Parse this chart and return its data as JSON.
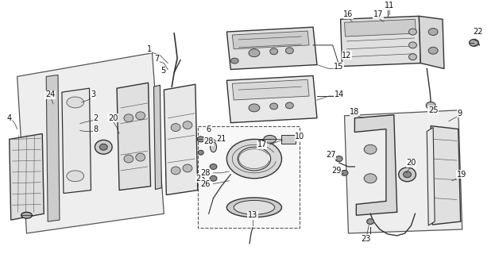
{
  "background_color": "#ffffff",
  "line_color": "#111111",
  "fig_width": 6.28,
  "fig_height": 3.2,
  "dpi": 100
}
